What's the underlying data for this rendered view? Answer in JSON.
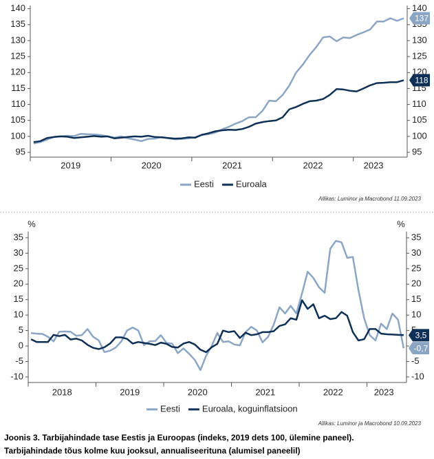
{
  "chart_data": [
    {
      "type": "line",
      "categories": [
        null,
        null,
        null,
        null,
        null,
        null,
        "2019",
        null,
        null,
        null,
        null,
        null,
        null,
        null,
        null,
        null,
        null,
        null,
        "2020",
        null,
        null,
        null,
        null,
        null,
        null,
        null,
        null,
        null,
        null,
        null,
        "2021",
        null,
        null,
        null,
        null,
        null,
        null,
        null,
        null,
        null,
        null,
        null,
        "2022",
        null,
        null,
        null,
        null,
        null,
        null,
        null,
        null,
        "2023",
        null,
        null,
        null,
        null
      ],
      "series": [
        {
          "name": "Eesti",
          "color": "#8aa6c4",
          "values": [
            97.8,
            98.2,
            99,
            99.8,
            100,
            100.2,
            100.1,
            100.8,
            100.7,
            100.6,
            100.4,
            100,
            99.6,
            100,
            99.4,
            99,
            98.5,
            99.2,
            99.3,
            99.8,
            99.4,
            99.1,
            99.2,
            99.4,
            99.7,
            100.5,
            100.7,
            101.2,
            102.2,
            103,
            104,
            104.8,
            106,
            106,
            108,
            111.2,
            111,
            113,
            116,
            120,
            122.5,
            125.5,
            128,
            131,
            131.3,
            129.8,
            131,
            130.8,
            131.8,
            132.6,
            133.5,
            136,
            136,
            137,
            136.2,
            137
          ]
        },
        {
          "name": "Euroala",
          "color": "#0e2f56",
          "values": [
            98.2,
            98.5,
            99.5,
            99.8,
            100,
            99.9,
            99.5,
            99.7,
            99.9,
            100.1,
            99.9,
            100,
            99.4,
            99.6,
            99.8,
            100,
            99.9,
            100.2,
            99.8,
            99.7,
            99.5,
            99.3,
            99.4,
            99.7,
            99.6,
            100.5,
            101,
            101.6,
            101.9,
            102.1,
            102,
            102.3,
            103,
            104,
            104.5,
            104.8,
            105,
            106,
            108.5,
            109.2,
            110.2,
            111,
            111.2,
            111.7,
            113,
            114.8,
            114.7,
            114.3,
            114.1,
            115,
            116,
            116.7,
            116.8,
            117,
            117,
            117.6
          ],
          "value_labels": [
            null,
            null,
            null,
            null,
            null,
            null,
            null,
            null,
            null,
            null,
            null,
            null,
            null,
            null,
            null,
            null,
            null,
            null,
            null,
            null,
            null,
            null,
            null,
            null,
            null,
            null,
            null,
            null,
            null,
            null,
            null,
            null,
            null,
            null,
            null,
            null,
            null,
            null,
            null,
            null,
            null,
            null,
            null,
            null,
            null,
            null,
            null,
            null,
            null,
            null,
            null,
            null,
            null,
            null,
            null,
            "118"
          ]
        }
      ],
      "ylim": [
        93.5,
        141
      ],
      "yticks": [
        95,
        100,
        105,
        110,
        115,
        120,
        125,
        130,
        135,
        140
      ],
      "grid": false,
      "source": "Allikas: Luminor ja Macrobond 11.09.2023"
    },
    {
      "type": "line",
      "y_unit": "%",
      "categories": [
        null,
        null,
        null,
        null,
        null,
        null,
        "2018",
        null,
        null,
        null,
        null,
        null,
        null,
        null,
        null,
        null,
        null,
        null,
        "2019",
        null,
        null,
        null,
        null,
        null,
        null,
        null,
        null,
        null,
        null,
        null,
        "2020",
        null,
        null,
        null,
        null,
        null,
        null,
        null,
        null,
        null,
        null,
        null,
        "2021",
        null,
        null,
        null,
        null,
        null,
        null,
        null,
        null,
        null,
        null,
        null,
        "2022",
        null,
        null,
        null,
        null,
        null,
        null,
        null,
        null,
        "2023",
        null,
        null,
        null
      ],
      "series": [
        {
          "name": "Eesti",
          "color": "#8aa6c4",
          "values": [
            4.2,
            4,
            3.9,
            3,
            1.5,
            4.6,
            4.7,
            4.6,
            3.3,
            3.5,
            5.5,
            3,
            1.8,
            -2,
            -1.5,
            -0.5,
            1.5,
            5,
            6,
            5,
            0.3,
            1.5,
            1.6,
            3.5,
            1,
            0.8,
            -2.3,
            -0.8,
            -2.5,
            -4.5,
            -7.8,
            -3.2,
            0,
            4.2,
            1.3,
            1.5,
            0.5,
            0.2,
            4.5,
            6.2,
            5,
            1.2,
            3,
            7,
            12.5,
            10.5,
            13,
            10.5,
            17,
            24,
            22,
            19,
            17.2,
            31.5,
            34,
            33.5,
            28.5,
            28.8,
            18,
            9,
            3.5,
            1.8,
            7.2,
            5.5,
            10.5,
            8.5,
            -0.7
          ],
          "value_labels": [
            null,
            null,
            null,
            null,
            null,
            null,
            null,
            null,
            null,
            null,
            null,
            null,
            null,
            null,
            null,
            null,
            null,
            null,
            null,
            null,
            null,
            null,
            null,
            null,
            null,
            null,
            null,
            null,
            null,
            null,
            null,
            null,
            null,
            null,
            null,
            null,
            null,
            null,
            null,
            null,
            null,
            null,
            null,
            null,
            null,
            null,
            null,
            null,
            null,
            null,
            null,
            null,
            null,
            null,
            null,
            null,
            null,
            null,
            null,
            null,
            null,
            null,
            null,
            null,
            null,
            null,
            "-0,7"
          ]
        },
        {
          "name": "Euroala, koguinflatsioon",
          "color": "#0e2f56",
          "values": [
            2.2,
            1.3,
            1.3,
            1.3,
            3.6,
            3.2,
            3.6,
            2.1,
            2.4,
            1.8,
            0.4,
            -0.6,
            -1,
            -0.4,
            0.8,
            2.8,
            2.8,
            2.3,
            0.8,
            1.3,
            1,
            0.7,
            0.3,
            1.1,
            0.7,
            -0.3,
            -0.5,
            0.8,
            1.3,
            0.5,
            -1.2,
            -2,
            -0.4,
            0.7,
            5,
            4.5,
            4.8,
            2.6,
            4.3,
            3.5,
            3.8,
            4.5,
            4.5,
            4.8,
            6.5,
            7,
            9,
            8.5,
            14.8,
            12,
            13.5,
            9,
            9.8,
            8.7,
            9,
            11,
            9.8,
            4.5,
            1.8,
            2.2,
            5.5,
            5.5,
            4,
            3.8,
            3.7,
            3.6,
            3.5
          ],
          "value_labels": [
            null,
            null,
            null,
            null,
            null,
            null,
            null,
            null,
            null,
            null,
            null,
            null,
            null,
            null,
            null,
            null,
            null,
            null,
            null,
            null,
            null,
            null,
            null,
            null,
            null,
            null,
            null,
            null,
            null,
            null,
            null,
            null,
            null,
            null,
            null,
            null,
            null,
            null,
            null,
            null,
            null,
            null,
            null,
            null,
            null,
            null,
            null,
            null,
            null,
            null,
            null,
            null,
            null,
            null,
            null,
            null,
            null,
            null,
            null,
            null,
            null,
            null,
            null,
            null,
            null,
            null,
            "3,5"
          ]
        }
      ],
      "ylim": [
        -11.8,
        37
      ],
      "yticks": [
        -10,
        -5,
        0,
        5,
        10,
        15,
        20,
        25,
        30,
        35
      ],
      "grid": false,
      "source": "Allikas: Luminor ja Macrobond 10.09.2023"
    }
  ],
  "caption": [
    "Joonis 3. Tarbijahindade tase Eestis ja Euroopas (indeks, 2019 dets 100, ülemine paneel).",
    "Tarbijahindade tõus kolme kuu jooksul, annualiseerituna (alumisel paneelil)"
  ]
}
